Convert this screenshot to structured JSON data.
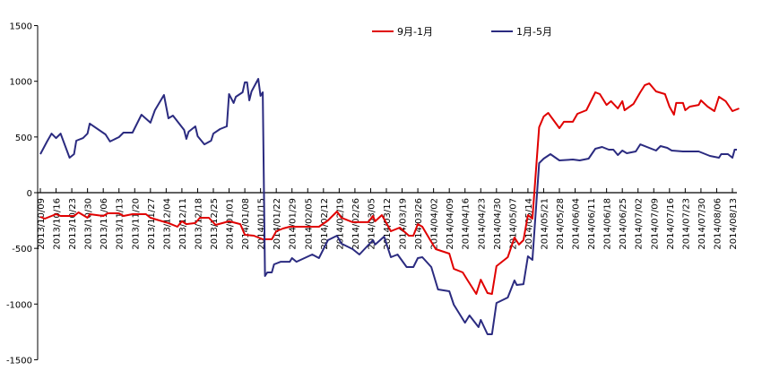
{
  "chart_data": {
    "type": "line",
    "title": "",
    "xlabel": "",
    "ylabel": "",
    "ylim": [
      -1500,
      1500
    ],
    "yticks": [
      1500,
      1000,
      500,
      0,
      -500,
      -1000,
      -1500
    ],
    "xlim": [
      "2013-10-09",
      "2014-08-13"
    ],
    "xticks": [
      "2013/10/09",
      "2013/10/16",
      "2013/10/23",
      "2013/10/30",
      "2013/11/06",
      "2013/11/13",
      "2013/11/20",
      "2013/11/27",
      "2013/12/04",
      "2013/12/11",
      "2013/12/18",
      "2013/12/25",
      "2014/01/01",
      "2014/01/08",
      "2014/01/15",
      "2014/01/22",
      "2014/01/29",
      "2014/02/05",
      "2014/02/12",
      "2014/02/19",
      "2014/02/26",
      "2014/03/05",
      "2014/03/12",
      "2014/03/19",
      "2014/03/26",
      "2014/04/02",
      "2014/04/09",
      "2014/04/16",
      "2014/04/23",
      "2014/04/30",
      "2014/05/07",
      "2014/05/14",
      "2014/05/21",
      "2014/05/28",
      "2014/06/04",
      "2014/06/11",
      "2014/06/18",
      "2014/06/25",
      "2014/07/02",
      "2014/07/09",
      "2014/07/16",
      "2014/07/23",
      "2014/07/30",
      "2014/08/06",
      "2014/08/13"
    ],
    "grid": false,
    "legend_position": "top",
    "series": [
      {
        "name": "9月-1月",
        "color": "#e00000",
        "points": [
          [
            "2013-10-09",
            -217
          ],
          [
            "2013-10-11",
            -233
          ],
          [
            "2013-10-16",
            -193
          ],
          [
            "2013-10-18",
            -209
          ],
          [
            "2013-10-24",
            -209
          ],
          [
            "2013-10-26",
            -177
          ],
          [
            "2013-10-30",
            -225
          ],
          [
            "2013-10-31",
            -193
          ],
          [
            "2013-11-06",
            -209
          ],
          [
            "2013-11-08",
            -185
          ],
          [
            "2013-11-13",
            -185
          ],
          [
            "2013-11-15",
            -209
          ],
          [
            "2013-11-19",
            -193
          ],
          [
            "2013-11-25",
            -193
          ],
          [
            "2013-11-27",
            -225
          ],
          [
            "2013-12-01",
            -249
          ],
          [
            "2013-12-05",
            -273
          ],
          [
            "2013-12-09",
            -306
          ],
          [
            "2013-12-11",
            -257
          ],
          [
            "2013-12-13",
            -282
          ],
          [
            "2013-12-17",
            -273
          ],
          [
            "2013-12-19",
            -225
          ],
          [
            "2013-12-23",
            -225
          ],
          [
            "2013-12-26",
            -290
          ],
          [
            "2014-01-01",
            -257
          ],
          [
            "2014-01-06",
            -282
          ],
          [
            "2014-01-08",
            -378
          ],
          [
            "2014-01-12",
            -386
          ],
          [
            "2014-01-16",
            -418
          ],
          [
            "2014-01-20",
            -418
          ],
          [
            "2014-01-22",
            -346
          ],
          [
            "2014-01-25",
            -322
          ],
          [
            "2014-01-28",
            -306
          ],
          [
            "2014-02-10",
            -306
          ],
          [
            "2014-02-14",
            -249
          ],
          [
            "2014-02-18",
            -169
          ],
          [
            "2014-02-20",
            -225
          ],
          [
            "2014-02-25",
            -265
          ],
          [
            "2014-03-04",
            -265
          ],
          [
            "2014-03-06",
            -209
          ],
          [
            "2014-03-07",
            -257
          ],
          [
            "2014-03-10",
            -201
          ],
          [
            "2014-03-14",
            -346
          ],
          [
            "2014-03-18",
            -314
          ],
          [
            "2014-03-22",
            -386
          ],
          [
            "2014-03-24",
            -386
          ],
          [
            "2014-03-26",
            -282
          ],
          [
            "2014-03-28",
            -306
          ],
          [
            "2014-04-01",
            -442
          ],
          [
            "2014-04-03",
            -507
          ],
          [
            "2014-04-09",
            -547
          ],
          [
            "2014-04-11",
            -684
          ],
          [
            "2014-04-15",
            -716
          ],
          [
            "2014-04-17",
            -781
          ],
          [
            "2014-04-21",
            -909
          ],
          [
            "2014-04-23",
            -781
          ],
          [
            "2014-04-26",
            -901
          ],
          [
            "2014-04-28",
            -909
          ],
          [
            "2014-04-30",
            -660
          ],
          [
            "2014-05-05",
            -579
          ],
          [
            "2014-05-08",
            -402
          ],
          [
            "2014-05-10",
            -466
          ],
          [
            "2014-05-12",
            -426
          ],
          [
            "2014-05-14",
            -201
          ],
          [
            "2014-05-16",
            -233
          ],
          [
            "2014-05-19",
            587
          ],
          [
            "2014-05-21",
            684
          ],
          [
            "2014-05-23",
            716
          ],
          [
            "2014-05-28",
            579
          ],
          [
            "2014-05-30",
            636
          ],
          [
            "2014-06-03",
            636
          ],
          [
            "2014-06-05",
            708
          ],
          [
            "2014-06-09",
            740
          ],
          [
            "2014-06-13",
            901
          ],
          [
            "2014-06-15",
            885
          ],
          [
            "2014-06-18",
            788
          ],
          [
            "2014-06-20",
            821
          ],
          [
            "2014-06-23",
            756
          ],
          [
            "2014-06-25",
            821
          ],
          [
            "2014-06-26",
            740
          ],
          [
            "2014-06-30",
            797
          ],
          [
            "2014-07-03",
            901
          ],
          [
            "2014-07-05",
            965
          ],
          [
            "2014-07-07",
            981
          ],
          [
            "2014-07-10",
            909
          ],
          [
            "2014-07-14",
            885
          ],
          [
            "2014-07-16",
            772
          ],
          [
            "2014-07-18",
            700
          ],
          [
            "2014-07-19",
            805
          ],
          [
            "2014-07-22",
            805
          ],
          [
            "2014-07-23",
            740
          ],
          [
            "2014-07-25",
            772
          ],
          [
            "2014-07-29",
            788
          ],
          [
            "2014-07-30",
            829
          ],
          [
            "2014-08-02",
            772
          ],
          [
            "2014-08-05",
            732
          ],
          [
            "2014-08-07",
            861
          ],
          [
            "2014-08-10",
            821
          ],
          [
            "2014-08-13",
            732
          ],
          [
            "2014-08-16",
            756
          ]
        ]
      },
      {
        "name": "1月-5月",
        "color": "#2b2b80",
        "points": [
          [
            "2013-10-09",
            346
          ],
          [
            "2013-10-12",
            459
          ],
          [
            "2013-10-14",
            530
          ],
          [
            "2013-10-16",
            490
          ],
          [
            "2013-10-18",
            530
          ],
          [
            "2013-10-22",
            314
          ],
          [
            "2013-10-24",
            346
          ],
          [
            "2013-10-25",
            467
          ],
          [
            "2013-10-28",
            490
          ],
          [
            "2013-10-30",
            530
          ],
          [
            "2013-10-31",
            620
          ],
          [
            "2013-11-07",
            523
          ],
          [
            "2013-11-09",
            459
          ],
          [
            "2013-11-13",
            499
          ],
          [
            "2013-11-15",
            539
          ],
          [
            "2013-11-19",
            539
          ],
          [
            "2013-11-23",
            700
          ],
          [
            "2013-11-27",
            628
          ],
          [
            "2013-11-29",
            740
          ],
          [
            "2013-12-03",
            877
          ],
          [
            "2013-12-05",
            668
          ],
          [
            "2013-12-07",
            692
          ],
          [
            "2013-12-12",
            563
          ],
          [
            "2013-12-13",
            483
          ],
          [
            "2013-12-14",
            547
          ],
          [
            "2013-12-17",
            595
          ],
          [
            "2013-12-18",
            507
          ],
          [
            "2013-12-21",
            434
          ],
          [
            "2013-12-24",
            467
          ],
          [
            "2013-12-25",
            530
          ],
          [
            "2013-12-28",
            571
          ],
          [
            "2013-12-31",
            595
          ],
          [
            "2014-01-01",
            885
          ],
          [
            "2014-01-03",
            805
          ],
          [
            "2014-01-04",
            861
          ],
          [
            "2014-01-07",
            901
          ],
          [
            "2014-01-08",
            990
          ],
          [
            "2014-01-09",
            990
          ],
          [
            "2014-01-10",
            829
          ],
          [
            "2014-01-11",
            909
          ],
          [
            "2014-01-14",
            1022
          ],
          [
            "2014-01-15",
            869
          ],
          [
            "2014-01-16",
            901
          ],
          [
            "2014-01-17",
            -748
          ],
          [
            "2014-01-18",
            -716
          ],
          [
            "2014-01-20",
            -716
          ],
          [
            "2014-01-21",
            -644
          ],
          [
            "2014-01-24",
            -620
          ],
          [
            "2014-01-28",
            -620
          ],
          [
            "2014-01-29",
            -587
          ],
          [
            "2014-01-31",
            -620
          ],
          [
            "2014-02-07",
            -555
          ],
          [
            "2014-02-10",
            -587
          ],
          [
            "2014-02-14",
            -426
          ],
          [
            "2014-02-18",
            -386
          ],
          [
            "2014-02-20",
            -458
          ],
          [
            "2014-02-25",
            -507
          ],
          [
            "2014-02-28",
            -555
          ],
          [
            "2014-03-06",
            -426
          ],
          [
            "2014-03-07",
            -466
          ],
          [
            "2014-03-11",
            -394
          ],
          [
            "2014-03-14",
            -579
          ],
          [
            "2014-03-17",
            -555
          ],
          [
            "2014-03-21",
            -668
          ],
          [
            "2014-03-24",
            -668
          ],
          [
            "2014-03-26",
            -587
          ],
          [
            "2014-03-28",
            -579
          ],
          [
            "2014-04-01",
            -668
          ],
          [
            "2014-04-04",
            -869
          ],
          [
            "2014-04-09",
            -885
          ],
          [
            "2014-04-11",
            -1006
          ],
          [
            "2014-04-16",
            -1167
          ],
          [
            "2014-04-18",
            -1102
          ],
          [
            "2014-04-22",
            -1207
          ],
          [
            "2014-04-23",
            -1142
          ],
          [
            "2014-04-26",
            -1271
          ],
          [
            "2014-04-28",
            -1271
          ],
          [
            "2014-04-30",
            -990
          ],
          [
            "2014-05-05",
            -941
          ],
          [
            "2014-05-08",
            -788
          ],
          [
            "2014-05-09",
            -829
          ],
          [
            "2014-05-12",
            -821
          ],
          [
            "2014-05-14",
            -571
          ],
          [
            "2014-05-16",
            -603
          ],
          [
            "2014-05-19",
            265
          ],
          [
            "2014-05-21",
            306
          ],
          [
            "2014-05-24",
            346
          ],
          [
            "2014-05-28",
            290
          ],
          [
            "2014-06-03",
            298
          ],
          [
            "2014-06-06",
            290
          ],
          [
            "2014-06-10",
            306
          ],
          [
            "2014-06-13",
            394
          ],
          [
            "2014-06-16",
            410
          ],
          [
            "2014-06-19",
            386
          ],
          [
            "2014-06-21",
            386
          ],
          [
            "2014-06-23",
            338
          ],
          [
            "2014-06-25",
            378
          ],
          [
            "2014-06-27",
            354
          ],
          [
            "2014-07-01",
            370
          ],
          [
            "2014-07-03",
            434
          ],
          [
            "2014-07-10",
            378
          ],
          [
            "2014-07-12",
            418
          ],
          [
            "2014-07-15",
            402
          ],
          [
            "2014-07-17",
            378
          ],
          [
            "2014-07-22",
            370
          ],
          [
            "2014-07-29",
            370
          ],
          [
            "2014-08-03",
            330
          ],
          [
            "2014-08-07",
            314
          ],
          [
            "2014-08-08",
            346
          ],
          [
            "2014-08-11",
            346
          ],
          [
            "2014-08-13",
            314
          ],
          [
            "2014-08-14",
            386
          ],
          [
            "2014-08-15",
            386
          ]
        ]
      }
    ]
  }
}
